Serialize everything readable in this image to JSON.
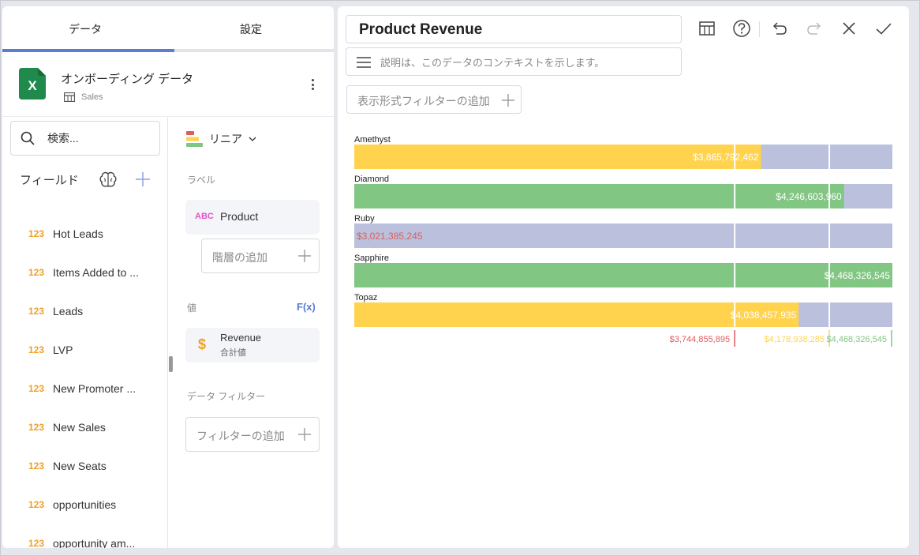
{
  "tabs": {
    "data": "データ",
    "settings": "設定"
  },
  "source": {
    "title": "オンボーディング データ",
    "subtitle": "Sales"
  },
  "fields_panel": {
    "search_placeholder": "検索...",
    "heading": "フィールド",
    "items": [
      {
        "type": "123",
        "label": "Hot Leads"
      },
      {
        "type": "123",
        "label": "Items Added to ..."
      },
      {
        "type": "123",
        "label": "Leads"
      },
      {
        "type": "123",
        "label": "LVP"
      },
      {
        "type": "123",
        "label": "New Promoter ..."
      },
      {
        "type": "123",
        "label": "New Sales"
      },
      {
        "type": "123",
        "label": "New Seats"
      },
      {
        "type": "123",
        "label": "opportunities"
      },
      {
        "type": "123",
        "label": "opportunity am..."
      }
    ]
  },
  "config": {
    "viz_type": "リニア",
    "label_section": "ラベル",
    "label_field": {
      "type": "ABC",
      "name": "Product"
    },
    "add_hierarchy": "階層の追加",
    "values_section": "値",
    "fx": "F(x)",
    "value_field": {
      "name": "Revenue",
      "agg": "合計値"
    },
    "data_filter_section": "データ フィルター",
    "add_filter": "フィルターの追加"
  },
  "editor": {
    "title": "Product Revenue",
    "description_placeholder": "説明は、このデータのコンテキストを示します。",
    "visual_filter": "表示形式フィルターの追加"
  },
  "colors": {
    "accent": "#5b7bd5",
    "bar_yellow": "#ffd34e",
    "bar_green": "#82c683",
    "bar_background": "#bbc1dc",
    "low_red": "#e05c5c",
    "numeric_orange": "#f0a024"
  },
  "chart_data": {
    "type": "bar",
    "orientation": "horizontal",
    "subtype": "linear gauge",
    "categories": [
      "Amethyst",
      "Diamond",
      "Ruby",
      "Sapphire",
      "Topaz"
    ],
    "values": [
      3865792462,
      4246603960,
      3021385245,
      4468326545,
      4038457935
    ],
    "value_labels": [
      "$3,865,792,462",
      "$4,246,603,960",
      "$3,021,385,245",
      "$4,468,326,545",
      "$4,038,457,935"
    ],
    "bar_colors": [
      "#ffd34e",
      "#82c683",
      "#e05c5c",
      "#82c683",
      "#ffd34e"
    ],
    "range": [
      2000000000,
      4468326545
    ],
    "thresholds": [
      {
        "value": 3744855895,
        "label": "$3,744,855,895",
        "color": "#e05c5c"
      },
      {
        "value": 4178938285,
        "label": "$4,178,938,285",
        "color": "#ffd34e"
      },
      {
        "value": 4468326545,
        "label": "$4,468,326,545",
        "color": "#82c683"
      }
    ]
  }
}
